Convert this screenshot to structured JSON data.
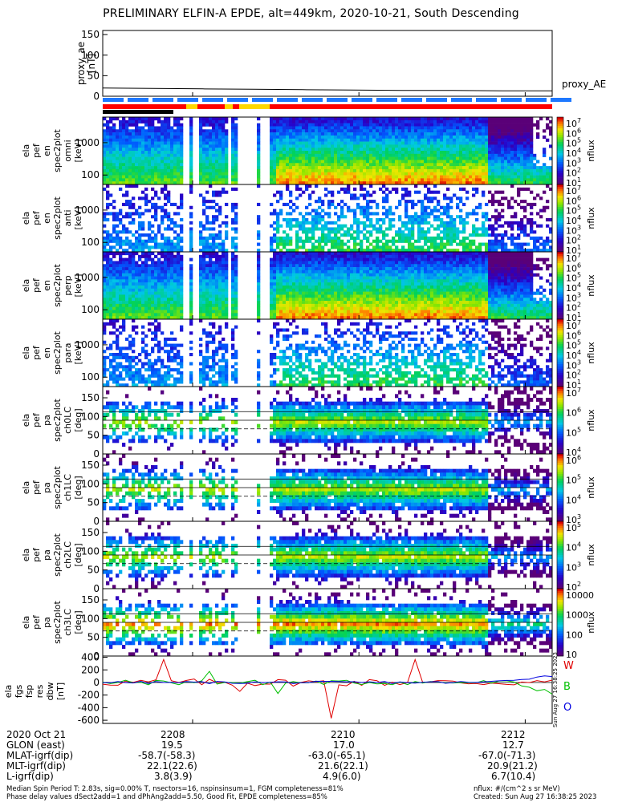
{
  "title": "PRELIMINARY ELFIN-A EPDE, alt=449km, 2020-10-21, South Descending",
  "chart_data": {
    "type": "heatmap",
    "panels": [
      {
        "ylabel": [
          "ela",
          "pef",
          "en",
          "spec2plot",
          "omni",
          "[keV]"
        ],
        "yticks": [
          "1000",
          "100"
        ],
        "ylog": true,
        "colorbar": {
          "label": "nflux",
          "ticks": [
            "10^7",
            "10^6",
            "10^5",
            "10^4",
            "10^3",
            "10^2",
            "10^1"
          ]
        }
      },
      {
        "ylabel": [
          "ela",
          "pef",
          "en",
          "spec2plot",
          "anti",
          "[keV]"
        ],
        "yticks": [
          "1000",
          "100"
        ],
        "ylog": true,
        "colorbar": {
          "label": "nflux",
          "ticks": [
            "10^7",
            "10^6",
            "10^5",
            "10^4",
            "10^3",
            "10^2",
            "10^1"
          ]
        }
      },
      {
        "ylabel": [
          "ela",
          "pef",
          "en",
          "spec2plot",
          "perp",
          "[keV]"
        ],
        "yticks": [
          "1000",
          "100"
        ],
        "ylog": true,
        "colorbar": {
          "label": "nflux",
          "ticks": [
            "10^7",
            "10^6",
            "10^5",
            "10^4",
            "10^3",
            "10^2",
            "10^1"
          ]
        }
      },
      {
        "ylabel": [
          "ela",
          "pef",
          "en",
          "spec2plot",
          "para",
          "[keV]"
        ],
        "yticks": [
          "1000",
          "100"
        ],
        "ylog": true,
        "colorbar": {
          "label": "nflux",
          "ticks": [
            "10^7",
            "10^6",
            "10^5",
            "10^4",
            "10^3",
            "10^2",
            "10^1"
          ]
        }
      },
      {
        "ylabel": [
          "ela",
          "pef",
          "pa",
          "spec2plot",
          "ch0LC",
          "[deg]"
        ],
        "yticks": [
          "150",
          "100",
          "50",
          "0"
        ],
        "ylim": [
          0,
          180
        ],
        "colorbar": {
          "label": "nflux",
          "ticks": [
            "10^7",
            "10^6",
            "10^5",
            "10^4"
          ]
        }
      },
      {
        "ylabel": [
          "ela",
          "pef",
          "pa",
          "spec2plot",
          "ch1LC",
          "[deg]"
        ],
        "yticks": [
          "150",
          "100",
          "50",
          "0"
        ],
        "ylim": [
          0,
          180
        ],
        "colorbar": {
          "label": "nflux",
          "ticks": [
            "10^6",
            "10^5",
            "10^4",
            "10^3"
          ]
        }
      },
      {
        "ylabel": [
          "ela",
          "pef",
          "pa",
          "spec2plot",
          "ch2LC",
          "[deg]"
        ],
        "yticks": [
          "150",
          "100",
          "50",
          "0"
        ],
        "ylim": [
          0,
          180
        ],
        "colorbar": {
          "label": "nflux",
          "ticks": [
            "10^5",
            "10^4",
            "10^3",
            "10^2"
          ]
        }
      },
      {
        "ylabel": [
          "ela",
          "pef",
          "pa",
          "spec2plot",
          "ch3LC",
          "[deg]"
        ],
        "yticks": [
          "150",
          "100",
          "50",
          "0"
        ],
        "ylim": [
          0,
          180
        ],
        "colorbar": {
          "label": "nflux",
          "ticks": [
            "10000",
            "1000",
            "100",
            "10"
          ]
        }
      }
    ],
    "proxy_ae": {
      "ylabel": [
        "proxy_ae",
        "[nT]"
      ],
      "yticks": [
        "150",
        "100",
        "50",
        "0"
      ],
      "ylim": [
        0,
        160
      ],
      "series_name": "proxy_AE",
      "values": [
        20,
        19,
        18,
        17,
        16,
        15,
        14,
        14,
        13,
        13
      ]
    },
    "fgm": {
      "ylabel": [
        "ela",
        "fgs",
        "fsp",
        "res",
        "dbw",
        "[nT]"
      ],
      "yticks": [
        "400",
        "200",
        "0",
        "-200",
        "-400",
        "-600"
      ],
      "ylim": [
        -650,
        420
      ],
      "legend": [
        "W",
        "B",
        "O"
      ],
      "colors": {
        "W": "#e00000",
        "B": "#00c000",
        "O": "#0000e0"
      }
    },
    "xticks": [
      "2208",
      "2210",
      "2212"
    ],
    "side_stamp": "Sun Aug 27 16:38:25 2023"
  },
  "header_rows": [
    {
      "label": "2020 Oct 21",
      "values": [
        "2208",
        "2210",
        "2212"
      ]
    },
    {
      "label": "GLON (east)",
      "values": [
        "19.5",
        "17.0",
        "12.7"
      ]
    },
    {
      "label": "MLAT-igrf(dip)",
      "values": [
        "-58.7(-58.3)",
        "-63.0(-65.1)",
        "-67.0(-71.3)"
      ]
    },
    {
      "label": "MLT-igrf(dip)",
      "values": [
        "22.1(22.6)",
        "21.6(22.1)",
        "20.9(21.2)"
      ]
    },
    {
      "label": "L-igrf(dip)",
      "values": [
        "3.8(3.9)",
        "4.9(6.0)",
        "6.7(10.4)"
      ]
    }
  ],
  "footer": {
    "line1": "Median Spin Period T: 2.83s, sig=0.00% T, nsectors=16, nspinsinsum=1, FGM completeness=81%",
    "line2": "Phase delay values dSect2add=1 and dPhAng2add=5.50, Good Fit, EPDE completeness=85%",
    "right1": "nflux: #/(cm^2 s sr MeV)",
    "right2": "Created: Sun Aug 27 16:38:25 2023"
  }
}
